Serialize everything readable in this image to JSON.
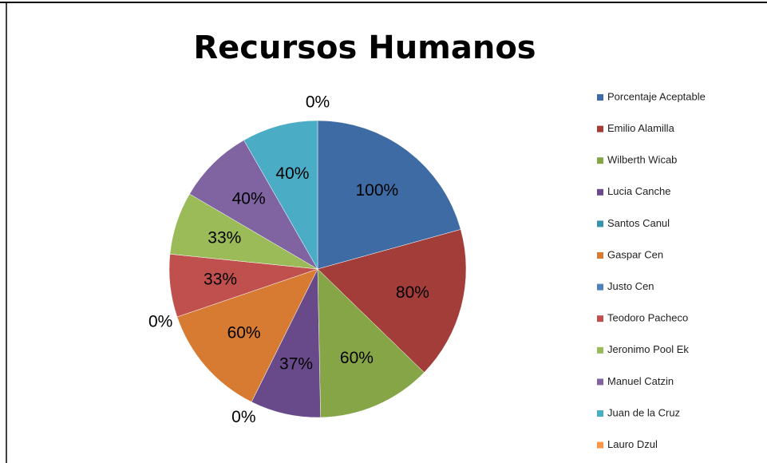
{
  "chart_data": {
    "type": "pie",
    "title": "Recursos Humanos",
    "categories": [
      "Porcentaje Aceptable",
      "Emilio Alamilla",
      "Wilberth Wicab",
      "Lucia Canche",
      "Santos Canul",
      "Gaspar Cen",
      "Justo Cen",
      "Teodoro Pacheco",
      "Jeronimo Pool Ek",
      "Manuel Catzin",
      "Juan de la Cruz",
      "Lauro Dzul"
    ],
    "values": [
      100,
      80,
      60,
      37,
      0,
      60,
      0,
      33,
      33,
      40,
      40,
      0
    ],
    "value_labels": [
      "100%",
      "80%",
      "60%",
      "37%",
      "0%",
      "60%",
      "0%",
      "33%",
      "33%",
      "40%",
      "40%",
      "0%"
    ],
    "colors": [
      "#3f6ba4",
      "#a33d3a",
      "#86a547",
      "#684a8a",
      "#3a93ad",
      "#d67b31",
      "#4f81bd",
      "#c0504d",
      "#9bbb59",
      "#8064a2",
      "#4bacc6",
      "#f79646"
    ],
    "legend": "right"
  }
}
